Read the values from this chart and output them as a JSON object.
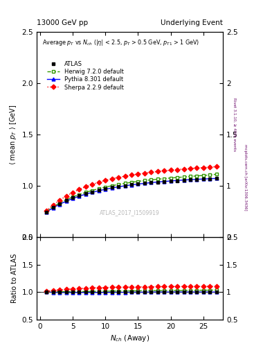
{
  "title_left": "13000 GeV pp",
  "title_right": "Underlying Event",
  "subtitle": "Average p_{T} vs N_{ch} (|#eta| < 2.5, p_{T} > 0.5 GeV, p_{T1} > 1 GeV)",
  "xlabel": "N_{ch} (Away)",
  "ylabel_main": "<mean p_T> [GeV]",
  "ylabel_ratio": "Ratio to ATLAS",
  "watermark": "ATLAS_2017_I1509919",
  "rivet_label": "Rivet 3.1.10, ≥ 400k events",
  "mcplots_label": "mcplots.cern.ch [arXiv:1306.3436]",
  "ylim_main": [
    0.5,
    2.5
  ],
  "ylim_ratio": [
    0.5,
    2.0
  ],
  "xlim": [
    -0.5,
    28
  ],
  "yticks_main": [
    0.5,
    1.0,
    1.5,
    2.0,
    2.5
  ],
  "yticks_ratio": [
    0.5,
    1.0,
    1.5,
    2.0
  ],
  "xticks": [
    0,
    5,
    10,
    15,
    20,
    25
  ],
  "atlas_x": [
    1,
    2,
    3,
    4,
    5,
    6,
    7,
    8,
    9,
    10,
    11,
    12,
    13,
    14,
    15,
    16,
    17,
    18,
    19,
    20,
    21,
    22,
    23,
    24,
    25,
    26,
    27
  ],
  "atlas_y": [
    0.748,
    0.79,
    0.828,
    0.858,
    0.884,
    0.907,
    0.927,
    0.944,
    0.96,
    0.973,
    0.985,
    0.995,
    1.005,
    1.013,
    1.021,
    1.027,
    1.033,
    1.038,
    1.043,
    1.048,
    1.052,
    1.057,
    1.06,
    1.063,
    1.066,
    1.07,
    1.073
  ],
  "herwig_x": [
    1,
    2,
    3,
    4,
    5,
    6,
    7,
    8,
    9,
    10,
    11,
    12,
    13,
    14,
    15,
    16,
    17,
    18,
    19,
    20,
    21,
    22,
    23,
    24,
    25,
    26,
    27
  ],
  "herwig_y": [
    0.755,
    0.797,
    0.835,
    0.866,
    0.893,
    0.917,
    0.938,
    0.957,
    0.974,
    0.989,
    1.003,
    1.015,
    1.026,
    1.036,
    1.045,
    1.053,
    1.06,
    1.066,
    1.072,
    1.078,
    1.083,
    1.088,
    1.093,
    1.098,
    1.103,
    1.107,
    1.115
  ],
  "pythia_x": [
    1,
    2,
    3,
    4,
    5,
    6,
    7,
    8,
    9,
    10,
    11,
    12,
    13,
    14,
    15,
    16,
    17,
    18,
    19,
    20,
    21,
    22,
    23,
    24,
    25,
    26,
    27
  ],
  "pythia_y": [
    0.748,
    0.788,
    0.822,
    0.852,
    0.878,
    0.901,
    0.921,
    0.938,
    0.954,
    0.968,
    0.981,
    0.992,
    1.002,
    1.011,
    1.019,
    1.026,
    1.033,
    1.039,
    1.044,
    1.049,
    1.054,
    1.058,
    1.062,
    1.065,
    1.068,
    1.071,
    1.074
  ],
  "sherpa_x": [
    1,
    2,
    3,
    4,
    5,
    6,
    7,
    8,
    9,
    10,
    11,
    12,
    13,
    14,
    15,
    16,
    17,
    18,
    19,
    20,
    21,
    22,
    23,
    24,
    25,
    26,
    27
  ],
  "sherpa_y": [
    0.76,
    0.815,
    0.862,
    0.902,
    0.937,
    0.967,
    0.993,
    1.016,
    1.037,
    1.055,
    1.071,
    1.084,
    1.096,
    1.107,
    1.117,
    1.126,
    1.134,
    1.141,
    1.148,
    1.154,
    1.16,
    1.166,
    1.171,
    1.175,
    1.179,
    1.184,
    1.188
  ],
  "atlas_color": "#000000",
  "herwig_color": "#339900",
  "pythia_color": "#0000ff",
  "sherpa_color": "#ff0000",
  "atlas_error": 0.005,
  "bg_color": "#ffffff",
  "ratio_band_color": "#ffff99"
}
